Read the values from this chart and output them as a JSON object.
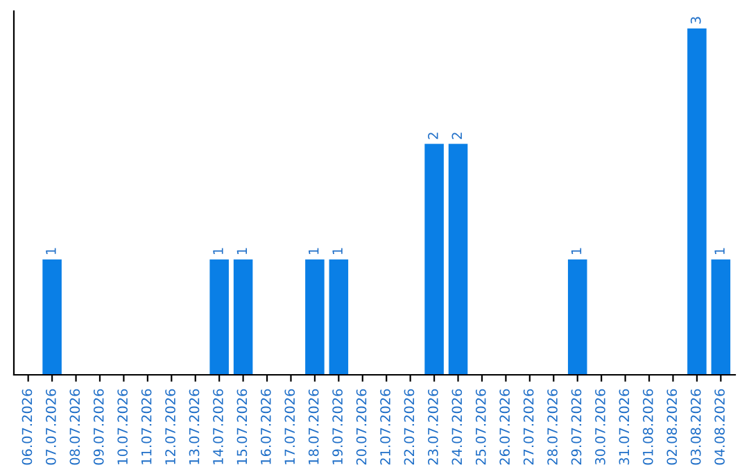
{
  "chart_data": {
    "type": "bar",
    "categories": [
      "06.07.2026",
      "07.07.2026",
      "08.07.2026",
      "09.07.2026",
      "10.07.2026",
      "11.07.2026",
      "12.07.2026",
      "13.07.2026",
      "14.07.2026",
      "15.07.2026",
      "16.07.2026",
      "17.07.2026",
      "18.07.2026",
      "19.07.2026",
      "20.07.2026",
      "21.07.2026",
      "22.07.2026",
      "23.07.2026",
      "24.07.2026",
      "25.07.2026",
      "26.07.2026",
      "27.07.2026",
      "28.07.2026",
      "29.07.2026",
      "30.07.2026",
      "31.07.2026",
      "01.08.2026",
      "02.08.2026",
      "03.08.2026",
      "04.08.2026"
    ],
    "values": [
      0,
      1,
      0,
      0,
      0,
      0,
      0,
      0,
      1,
      1,
      0,
      0,
      1,
      1,
      0,
      0,
      0,
      2,
      2,
      0,
      0,
      0,
      0,
      1,
      0,
      0,
      0,
      0,
      3,
      1
    ],
    "value_labels": [
      null,
      "1",
      null,
      null,
      null,
      null,
      null,
      null,
      "1",
      "1",
      null,
      null,
      "1",
      "1",
      null,
      null,
      null,
      "2",
      "2",
      null,
      null,
      null,
      null,
      "1",
      null,
      null,
      null,
      null,
      "3",
      "1"
    ],
    "color": "#0a7fe6",
    "ylim": [
      0,
      3.15
    ],
    "tick_labels": "x",
    "grid": false,
    "legend": false
  }
}
